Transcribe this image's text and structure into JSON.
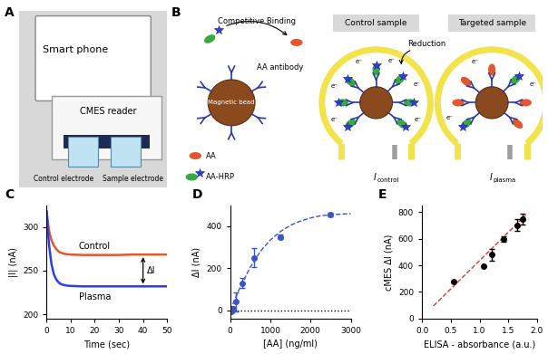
{
  "panels": {
    "A": {
      "label": "A",
      "phone": "Smart phone",
      "reader": "CMES reader",
      "control_electrode": "Control electrode",
      "sample_electrode": "Sample electrode"
    },
    "B": {
      "label": "B",
      "competitive_binding": "Competitive Binding",
      "antibody": "AA antibody",
      "bead": "Magnetic bead",
      "analyte": "AA",
      "conjugate": "AA-HRP",
      "reduction": "Reduction",
      "electron": "e⁻",
      "control": {
        "title": "Control sample",
        "current": {
          "symbol": "I",
          "subscript": "control"
        }
      },
      "target": {
        "title": "Targeted sample",
        "current": {
          "symbol": "I",
          "subscript": "plasma"
        }
      }
    }
  },
  "chart_data": [
    {
      "panel": "C",
      "type": "line",
      "xlabel": "Time (sec)",
      "ylabel": "|I| (nA)",
      "x": [
        0,
        1,
        2,
        3,
        4,
        5,
        6,
        8,
        10,
        15,
        20,
        25,
        30,
        35,
        40,
        45,
        50
      ],
      "series": [
        {
          "name": "Control",
          "color": "#e4572e",
          "line_style": "solid",
          "values": [
            318,
            296,
            285,
            279,
            275,
            272,
            270.5,
            269,
            268.5,
            268,
            268,
            268,
            268,
            268.5,
            268.5,
            268.5,
            268.5
          ]
        },
        {
          "name": "Plasma",
          "color": "#2c3ee0",
          "line_style": "solid",
          "values": [
            318,
            280,
            258,
            246,
            240,
            236.5,
            234.5,
            233,
            232.5,
            232,
            232,
            232,
            232,
            232,
            232,
            232,
            232
          ]
        }
      ],
      "annotation": "ΔI",
      "xlim": [
        0,
        50
      ],
      "xticks": [
        0,
        10,
        20,
        30,
        40,
        50
      ],
      "ylim": [
        195,
        325
      ],
      "yticks": [
        200,
        250,
        300
      ]
    },
    {
      "panel": "D",
      "type": "scatter",
      "xlabel": "[AA] (ng/ml)",
      "ylabel": "ΔI (nA)",
      "color": "#3a55c8",
      "marker": "o",
      "x": [
        0,
        40,
        80,
        150,
        300,
        600,
        1250,
        2500
      ],
      "values": [
        0,
        -5,
        5,
        40,
        130,
        250,
        350,
        455
      ],
      "errors": [
        8,
        5,
        10,
        45,
        25,
        45,
        10,
        8
      ],
      "fit": {
        "line_style": "dashed",
        "x": [
          0,
          250,
          500,
          750,
          1000,
          1250,
          1500,
          1750,
          2000,
          2250,
          2500,
          2750,
          3000
        ],
        "values": [
          0,
          110,
          205,
          280,
          335,
          375,
          405,
          425,
          440,
          450,
          455,
          458,
          460
        ]
      },
      "baseline": 0,
      "xlim": [
        0,
        3000
      ],
      "xticks": [
        0,
        1000,
        2000,
        3000
      ],
      "ylim": [
        -40,
        500
      ],
      "yticks": [
        0,
        200,
        400
      ]
    },
    {
      "panel": "E",
      "type": "scatter",
      "xlabel": "ELISA - absorbance (a.u.)",
      "ylabel": "cMES ΔI (nA)",
      "color": "#000000",
      "marker": "o",
      "x": [
        0.55,
        1.07,
        1.22,
        1.42,
        1.65,
        1.75
      ],
      "values": [
        280,
        390,
        480,
        600,
        700,
        745
      ],
      "errors": [
        0,
        0,
        45,
        20,
        45,
        40
      ],
      "fit": {
        "line_style": "dashed",
        "color": "#e03a2f",
        "x": [
          0.2,
          1.8
        ],
        "values": [
          95,
          775
        ]
      },
      "xlim": [
        0,
        2
      ],
      "xticks": [
        {
          "value": 0,
          "label": "0.0"
        },
        0.5,
        {
          "value": 1,
          "label": "1.0"
        },
        1.5,
        {
          "value": 2,
          "label": "2.0"
        }
      ],
      "ylim": [
        0,
        850
      ],
      "yticks": [
        0,
        200,
        400,
        600,
        800
      ]
    }
  ]
}
